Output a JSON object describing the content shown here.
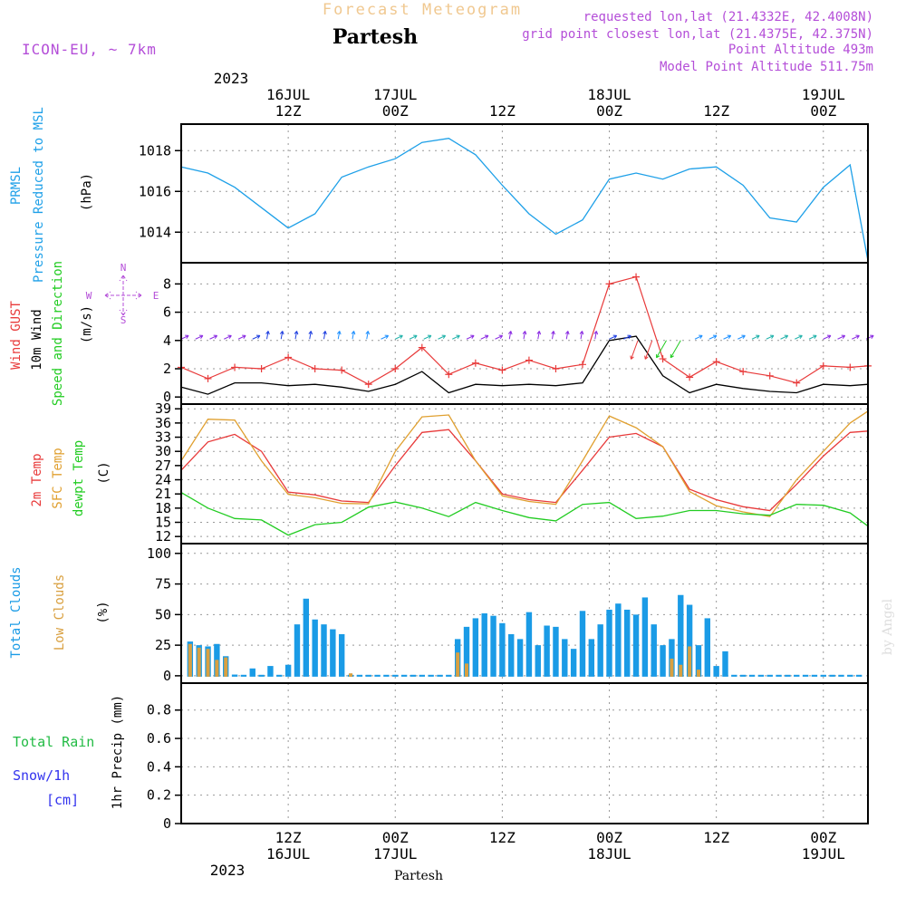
{
  "header": {
    "banner": "Forecast Meteogram",
    "station": "Partesh",
    "model": "ICON-EU, ~ 7km",
    "requested": "requested lon,lat (21.4332E, 42.4008N)",
    "gridpoint": "grid point closest lon,lat (21.4375E, 42.375N)",
    "point_alt": "Point Altitude 493m",
    "model_alt": "Model Point Altitude 511.75m",
    "watermark": "by Angel",
    "footer_station": "Partesh"
  },
  "colors": {
    "pressure": "#1ea0e8",
    "gust": "#e83a3a",
    "wind": "#000000",
    "temp2m": "#e83a3a",
    "sfc": "#e0a030",
    "dewpt": "#22cc22",
    "total_clouds": "#1a9be6",
    "low_clouds": "#d9a040",
    "rain": "#22bb44",
    "snow": "#3333ee",
    "purple": "#b44ed8",
    "banner": "#f0c890"
  },
  "time_axis": {
    "top_year": "2023",
    "top_dates": [
      "16JUL",
      "17JUL",
      "18JUL",
      "19JUL"
    ],
    "top_hours": [
      "12Z",
      "00Z",
      "12Z",
      "00Z",
      "12Z",
      "00Z"
    ],
    "bottom_hours": [
      "12Z",
      "00Z",
      "12Z",
      "00Z",
      "12Z",
      "00Z"
    ],
    "bottom_dates": [
      "16JUL",
      "17JUL",
      "18JUL",
      "19JUL"
    ],
    "bottom_year": "2023",
    "start_hour_utc": 0,
    "end_hour_utc": 77
  },
  "compass": {
    "n": "N",
    "s": "S",
    "w": "W",
    "e": "E"
  },
  "chart_data": [
    {
      "type": "line",
      "title": "Pressure Reduced to MSL",
      "ylabel_lines": [
        "PRMSL",
        "Pressure Reduced to MSL"
      ],
      "unit": "(hPa)",
      "ylim": [
        1012.5,
        1019.3
      ],
      "yticks": [
        1014,
        1016,
        1018
      ],
      "x_hours": [
        0,
        3,
        6,
        9,
        12,
        15,
        18,
        21,
        24,
        27,
        30,
        33,
        36,
        39,
        42,
        45,
        48,
        51,
        54,
        57,
        60,
        63,
        66,
        69,
        72,
        75,
        77
      ],
      "series": [
        {
          "name": "PRMSL",
          "values": [
            1017.2,
            1016.9,
            1016.2,
            1015.2,
            1014.2,
            1014.9,
            1016.7,
            1017.2,
            1017.6,
            1018.4,
            1018.6,
            1017.8,
            1016.3,
            1014.9,
            1013.9,
            1014.6,
            1016.6,
            1016.9,
            1016.6,
            1017.1,
            1017.2,
            1016.3,
            1014.7,
            1014.5,
            1016.2,
            1017.3,
            1012.6
          ]
        }
      ]
    },
    {
      "type": "line",
      "title": "Wind Speed and Direction",
      "ylabel_lines": [
        "Wind GUST",
        "10m Wind",
        "Speed and Direction"
      ],
      "unit": "(m/s)",
      "ylim": [
        -0.5,
        9.5
      ],
      "yticks": [
        0,
        2,
        4,
        6,
        8
      ],
      "x_hours": [
        0,
        3,
        6,
        9,
        12,
        15,
        18,
        21,
        24,
        27,
        30,
        33,
        36,
        39,
        42,
        45,
        48,
        51,
        54,
        57,
        60,
        63,
        66,
        69,
        72,
        75,
        77
      ],
      "series": [
        {
          "name": "Wind GUST",
          "values": [
            2.1,
            1.3,
            2.1,
            2.0,
            2.8,
            2.0,
            1.9,
            0.9,
            2.0,
            3.5,
            1.6,
            2.4,
            1.9,
            2.6,
            2.0,
            2.3,
            8.0,
            8.5,
            2.7,
            1.4,
            2.5,
            1.8,
            1.5,
            1.0,
            2.2,
            2.1,
            2.2
          ]
        },
        {
          "name": "10m Wind",
          "values": [
            0.7,
            0.2,
            1.0,
            1.0,
            0.8,
            0.9,
            0.7,
            0.4,
            0.9,
            1.8,
            0.3,
            0.9,
            0.8,
            0.9,
            0.8,
            1.0,
            4.0,
            4.3,
            1.5,
            0.3,
            0.9,
            0.6,
            0.4,
            0.3,
            0.9,
            0.8,
            0.9
          ]
        }
      ]
    },
    {
      "type": "line",
      "title": "Temperatures",
      "ylabel_lines": [
        "2m Temp",
        "SFC Temp",
        "dewpt Temp"
      ],
      "unit": "(C)",
      "ylim": [
        10.5,
        40.0
      ],
      "yticks": [
        12,
        15,
        18,
        21,
        24,
        27,
        30,
        33,
        36,
        39
      ],
      "x_hours": [
        0,
        3,
        6,
        9,
        12,
        15,
        18,
        21,
        24,
        27,
        30,
        33,
        36,
        39,
        42,
        45,
        48,
        51,
        54,
        57,
        60,
        63,
        66,
        69,
        72,
        75,
        77
      ],
      "series": [
        {
          "name": "2m Temp",
          "values": [
            26,
            32,
            33.6,
            30,
            21.4,
            20.8,
            19.5,
            19.2,
            27,
            34,
            34.6,
            28,
            21,
            19.8,
            19.2,
            26,
            33,
            33.8,
            31,
            22,
            19.8,
            18.3,
            17.5,
            23,
            29,
            34,
            34.3
          ]
        },
        {
          "name": "SFC Temp",
          "values": [
            28,
            36.8,
            36.6,
            28,
            20.9,
            20.2,
            19.0,
            18.9,
            30,
            37.3,
            37.7,
            28,
            20.6,
            19.4,
            18.8,
            28,
            37.5,
            35,
            31,
            21.5,
            18.5,
            17.2,
            16.2,
            24,
            30,
            36,
            38.5
          ]
        },
        {
          "name": "dewpt Temp",
          "values": [
            21.3,
            18,
            15.8,
            15.5,
            12.3,
            14.5,
            15,
            18.2,
            19.3,
            18,
            16.2,
            19.2,
            17.5,
            16,
            15.3,
            18.8,
            19.2,
            15.8,
            16.3,
            17.5,
            17.5,
            16.8,
            16.5,
            18.8,
            18.6,
            17,
            14.2
          ]
        }
      ]
    },
    {
      "type": "bar",
      "title": "Clouds",
      "ylabel_lines": [
        "Total Clouds",
        "Low Clouds"
      ],
      "unit": "(%)",
      "ylim": [
        -6,
        108
      ],
      "yticks": [
        0,
        25,
        50,
        75,
        100
      ],
      "start_hour": 1,
      "series": [
        {
          "name": "Total Clouds",
          "values": [
            28,
            25,
            24,
            26,
            16,
            1,
            0,
            6,
            0,
            8,
            0,
            9,
            42,
            63,
            46,
            42,
            38,
            34,
            0,
            0,
            0,
            0,
            0,
            0,
            0,
            0,
            0,
            0,
            0,
            0,
            30,
            40,
            47,
            51,
            49,
            43,
            34,
            30,
            52,
            25,
            41,
            40,
            30,
            22,
            53,
            30,
            42,
            54,
            59,
            54,
            50,
            64,
            42,
            25,
            30,
            66,
            58,
            25,
            47,
            8,
            20,
            0,
            0,
            0,
            0,
            0,
            0,
            0,
            0,
            0,
            0,
            0,
            0,
            0,
            0,
            0
          ]
        },
        {
          "name": "Low Clouds",
          "values": [
            26,
            23,
            22,
            13,
            15,
            0,
            0,
            0,
            0,
            0,
            0,
            0,
            0,
            0,
            0,
            0,
            0,
            0,
            2,
            0,
            0,
            0,
            0,
            0,
            0,
            0,
            0,
            0,
            0,
            0,
            19,
            10,
            0,
            0,
            0,
            0,
            0,
            0,
            0,
            0,
            0,
            0,
            0,
            0,
            0,
            0,
            0,
            0,
            0,
            0,
            0,
            0,
            0,
            0,
            14,
            9,
            24,
            5,
            0,
            0,
            0,
            0,
            0,
            0,
            0,
            0,
            0,
            0,
            0,
            0,
            0,
            0,
            0,
            0,
            0,
            0
          ]
        }
      ]
    },
    {
      "type": "bar",
      "title": "1hr Precip",
      "ylabel_lines": [
        "Total Rain",
        "Snow/1h",
        "[cm]"
      ],
      "unit": "1hr Precip (mm)",
      "ylim": [
        0,
        0.99
      ],
      "yticks": [
        0.0,
        0.2,
        0.4,
        0.6,
        0.8
      ],
      "series": [
        {
          "name": "Total Rain",
          "values": []
        },
        {
          "name": "Snow/1h",
          "values": []
        }
      ]
    }
  ]
}
